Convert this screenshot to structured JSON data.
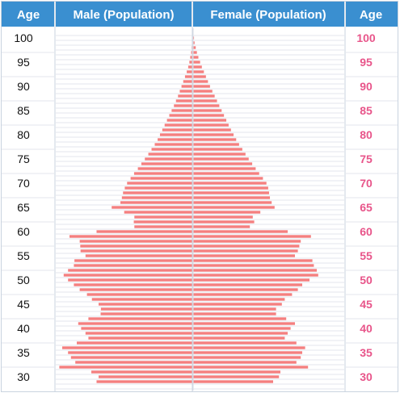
{
  "header": {
    "age_left": "Age",
    "male": "Male (Population)",
    "female": "Female (Population)",
    "age_right": "Age"
  },
  "colors": {
    "header_bg": "#3a8fd0",
    "header_text": "#ffffff",
    "bar": "#f47f7f",
    "age_left_text": "#111111",
    "age_right_text": "#e8558a",
    "row_line": "#e3e6ee",
    "border": "#c9d3df"
  },
  "chart_data": {
    "type": "bar",
    "orientation": "horizontal",
    "layout": "population-pyramid",
    "grid": true,
    "age_labels": [
      "100",
      "95",
      "90",
      "85",
      "80",
      "75",
      "70",
      "65",
      "60",
      "55",
      "50",
      "45",
      "40",
      "35",
      "30"
    ],
    "series": [
      {
        "name": "Male (Population)",
        "ages": [
          100,
          99,
          98,
          97,
          96,
          95,
          94,
          93,
          92,
          91,
          90,
          89,
          88,
          87,
          86,
          85,
          84,
          83,
          82,
          81,
          80,
          79,
          78,
          77,
          76,
          75,
          74,
          73,
          72,
          71,
          70,
          69,
          68,
          67,
          66,
          65,
          64,
          63,
          62,
          61,
          60,
          59,
          58,
          57,
          56,
          55,
          54,
          53,
          52,
          51,
          50,
          49,
          48,
          47,
          46,
          45,
          44,
          43,
          42,
          41,
          40,
          39,
          38,
          37,
          36,
          35,
          34,
          33,
          32,
          31,
          30,
          29
        ],
        "values": [
          0.2,
          0.3,
          0.5,
          0.7,
          1.0,
          1.3,
          1.7,
          2.2,
          2.8,
          3.4,
          4.0,
          4.6,
          5.2,
          5.9,
          6.6,
          7.4,
          8.2,
          9.0,
          9.8,
          10.6,
          11.4,
          12.2,
          13.2,
          14.3,
          15.4,
          16.6,
          17.8,
          19.0,
          20.3,
          21.5,
          22.7,
          23.5,
          24.1,
          24.5,
          25.0,
          28.0,
          23.7,
          20.2,
          20.4,
          20.2,
          33.2,
          42.5,
          39.0,
          38.8,
          38.7,
          37.0,
          40.8,
          41.0,
          43.0,
          44.5,
          43.0,
          41.0,
          39.0,
          36.5,
          34.8,
          32.5,
          31.7,
          31.8,
          36.0,
          39.5,
          38.5,
          37.0,
          36.0,
          40.0,
          45.0,
          43.0,
          42.0,
          40.5,
          46.0,
          35.0,
          32.5,
          33.2
        ]
      },
      {
        "name": "Female (Population)",
        "ages": [
          100,
          99,
          98,
          97,
          96,
          95,
          94,
          93,
          92,
          91,
          90,
          89,
          88,
          87,
          86,
          85,
          84,
          83,
          82,
          81,
          80,
          79,
          78,
          77,
          76,
          75,
          74,
          73,
          72,
          71,
          70,
          69,
          68,
          67,
          66,
          65,
          64,
          63,
          62,
          61,
          60,
          59,
          58,
          57,
          56,
          55,
          54,
          53,
          52,
          51,
          50,
          49,
          48,
          47,
          46,
          45,
          44,
          43,
          42,
          41,
          40,
          39,
          38,
          37,
          36,
          35,
          34,
          33,
          32,
          31,
          30,
          29
        ],
        "values": [
          0.3,
          0.5,
          0.9,
          1.3,
          1.8,
          2.4,
          3.0,
          3.7,
          4.4,
          5.1,
          5.8,
          6.6,
          7.4,
          8.2,
          9.0,
          9.8,
          10.6,
          11.4,
          12.2,
          13.0,
          13.9,
          14.8,
          15.8,
          16.9,
          18.0,
          19.1,
          20.3,
          21.5,
          22.7,
          24.0,
          25.2,
          25.8,
          26.1,
          26.4,
          27.0,
          28.0,
          23.1,
          20.5,
          21.0,
          19.5,
          32.5,
          40.5,
          37.0,
          36.5,
          36.0,
          35.0,
          41.0,
          41.5,
          42.5,
          43.0,
          40.0,
          37.5,
          36.0,
          34.0,
          31.5,
          30.5,
          28.5,
          28.5,
          32.0,
          35.0,
          33.5,
          32.5,
          31.5,
          35.5,
          38.5,
          37.5,
          37.0,
          35.5,
          39.5,
          30.0,
          29.5,
          27.5
        ]
      }
    ]
  }
}
